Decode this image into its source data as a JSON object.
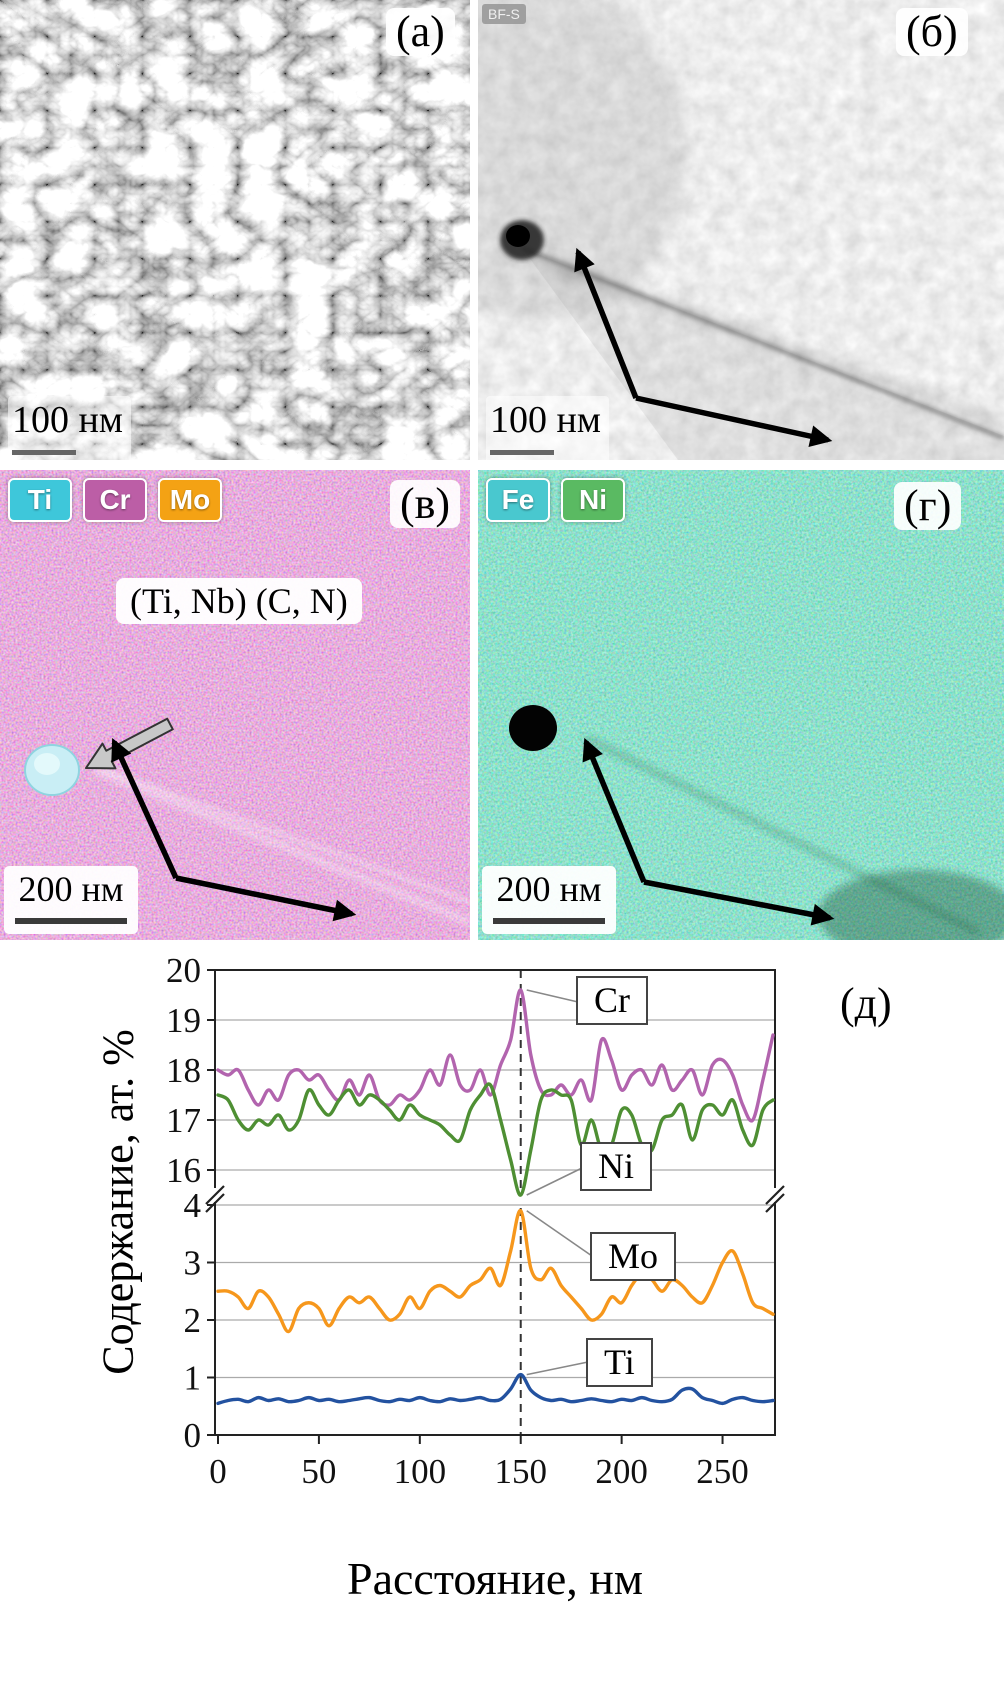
{
  "figure": {
    "background": "#ffffff"
  },
  "panels": {
    "a": {
      "label": "(а)",
      "scalebar": "100 нм"
    },
    "b": {
      "label": "(б)",
      "detector_tag": "BF-S",
      "scalebar": "100 нм"
    },
    "v": {
      "label": "(в)",
      "scalebar": "200 нм",
      "annotation": "(Ti, Nb) (C, N)",
      "chips": [
        {
          "text": "Ti",
          "color": "#3ec7da"
        },
        {
          "text": "Cr",
          "color": "#bc5ea6"
        },
        {
          "text": "Mo",
          "color": "#f4a214"
        }
      ]
    },
    "g": {
      "label": "(г)",
      "scalebar": "200 нм",
      "chips": [
        {
          "text": "Fe",
          "color": "#49c8cf"
        },
        {
          "text": "Ni",
          "color": "#5aba62"
        }
      ]
    },
    "d": {
      "label": "(д)"
    }
  },
  "chart_data": {
    "type": "line",
    "title": "",
    "xlabel": "Расстояние, нм",
    "ylabel": "Содержание, ат. %",
    "xlim": [
      0,
      275
    ],
    "x_ticks": [
      0,
      50,
      100,
      150,
      200,
      250
    ],
    "x_step_nm": 5,
    "grid": true,
    "dashed_marker_x": 150,
    "y_axis": {
      "broken": true,
      "top_segment": {
        "range": [
          16,
          20
        ],
        "ticks": [
          20,
          19,
          18,
          17,
          16
        ]
      },
      "bottom_segment": {
        "range": [
          0,
          4
        ],
        "ticks": [
          4,
          3,
          2,
          1,
          0
        ]
      }
    },
    "series": [
      {
        "name": "Cr",
        "color": "#b264ae",
        "segment": "top",
        "values": [
          18.0,
          17.9,
          18.0,
          17.6,
          17.3,
          17.6,
          17.4,
          17.9,
          18.0,
          17.8,
          17.9,
          17.6,
          17.4,
          17.8,
          17.5,
          17.9,
          17.4,
          17.3,
          17.5,
          17.4,
          17.6,
          18.0,
          17.7,
          18.3,
          17.7,
          17.6,
          18.0,
          17.5,
          18.1,
          18.6,
          19.6,
          18.3,
          17.6,
          17.5,
          17.7,
          17.5,
          17.8,
          17.4,
          18.6,
          18.2,
          17.6,
          17.9,
          18.0,
          17.7,
          18.1,
          17.6,
          17.8,
          18.0,
          17.5,
          18.1,
          18.2,
          17.9,
          17.3,
          17.0,
          17.8,
          18.7
        ]
      },
      {
        "name": "Ni",
        "color": "#4e8f33",
        "segment": "top",
        "values": [
          17.5,
          17.4,
          17.0,
          16.8,
          17.0,
          16.9,
          17.1,
          16.8,
          17.0,
          17.6,
          17.3,
          17.1,
          17.4,
          17.6,
          17.3,
          17.5,
          17.4,
          17.2,
          17.0,
          17.3,
          17.1,
          17.0,
          16.9,
          16.7,
          16.6,
          17.2,
          17.5,
          17.7,
          17.0,
          16.2,
          15.5,
          16.4,
          17.4,
          17.6,
          17.5,
          17.4,
          16.5,
          17.0,
          16.4,
          16.5,
          17.2,
          17.1,
          16.5,
          16.4,
          17.0,
          17.1,
          17.3,
          16.6,
          17.2,
          17.3,
          17.1,
          17.4,
          16.8,
          16.5,
          17.2,
          17.4
        ]
      },
      {
        "name": "Mo",
        "color": "#f6971c",
        "segment": "bottom",
        "values": [
          2.5,
          2.5,
          2.4,
          2.2,
          2.5,
          2.4,
          2.1,
          1.8,
          2.2,
          2.3,
          2.2,
          1.9,
          2.2,
          2.4,
          2.3,
          2.4,
          2.2,
          2.0,
          2.1,
          2.4,
          2.2,
          2.5,
          2.6,
          2.5,
          2.4,
          2.6,
          2.7,
          2.9,
          2.6,
          3.2,
          3.9,
          2.9,
          2.7,
          2.9,
          2.6,
          2.4,
          2.2,
          2.0,
          2.1,
          2.4,
          2.3,
          2.6,
          2.8,
          2.7,
          2.5,
          2.7,
          2.6,
          2.4,
          2.3,
          2.6,
          3.0,
          3.2,
          2.8,
          2.3,
          2.2,
          2.1
        ]
      },
      {
        "name": "Ti",
        "color": "#2352a0",
        "segment": "bottom",
        "values": [
          0.55,
          0.6,
          0.62,
          0.58,
          0.65,
          0.6,
          0.63,
          0.58,
          0.6,
          0.65,
          0.6,
          0.62,
          0.58,
          0.6,
          0.63,
          0.65,
          0.6,
          0.58,
          0.62,
          0.6,
          0.65,
          0.6,
          0.58,
          0.63,
          0.6,
          0.62,
          0.65,
          0.6,
          0.62,
          0.8,
          1.05,
          0.78,
          0.65,
          0.6,
          0.62,
          0.58,
          0.6,
          0.63,
          0.6,
          0.58,
          0.62,
          0.6,
          0.65,
          0.6,
          0.58,
          0.62,
          0.78,
          0.8,
          0.65,
          0.6,
          0.55,
          0.62,
          0.65,
          0.6,
          0.58,
          0.6
        ]
      }
    ]
  }
}
